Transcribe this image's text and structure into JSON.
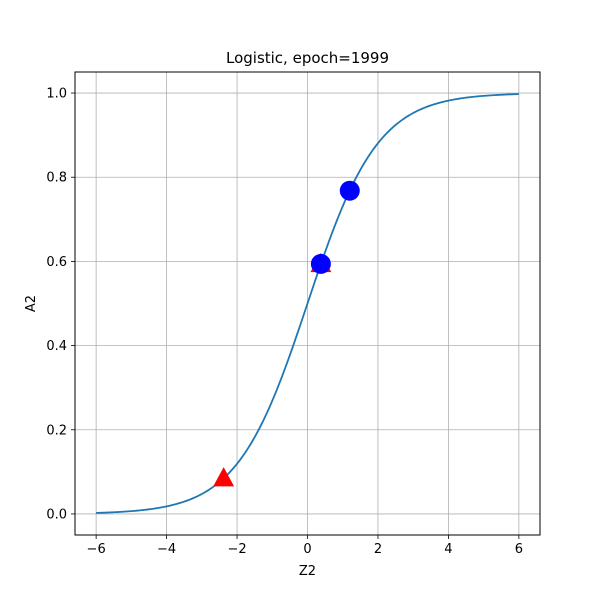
{
  "chart_data": {
    "type": "scatter",
    "title": "Logistic, epoch=1999",
    "xlabel": "Z2",
    "ylabel": "A2",
    "xlim": [
      -6.6,
      6.6
    ],
    "ylim": [
      -0.05,
      1.05
    ],
    "xticks": [
      -6,
      -4,
      -2,
      0,
      2,
      4,
      6
    ],
    "xtick_labels": [
      "−6",
      "−4",
      "−2",
      "0",
      "2",
      "4",
      "6"
    ],
    "yticks": [
      0.0,
      0.2,
      0.4,
      0.6,
      0.8,
      1.0
    ],
    "ytick_labels": [
      "0.0",
      "0.2",
      "0.4",
      "0.6",
      "0.8",
      "1.0"
    ],
    "grid": true,
    "curve": {
      "function": "logistic",
      "x_range": [
        -6,
        6
      ],
      "color": "#1f77b4"
    },
    "series": [
      {
        "marker": "triangle",
        "color": "#ff0000",
        "points": [
          {
            "x": -2.38,
            "y": 0.085
          },
          {
            "x": 0.38,
            "y": 0.594
          }
        ]
      },
      {
        "marker": "circle",
        "color": "#0000ff",
        "points": [
          {
            "x": 0.38,
            "y": 0.594
          },
          {
            "x": 1.2,
            "y": 0.768
          }
        ]
      }
    ]
  }
}
